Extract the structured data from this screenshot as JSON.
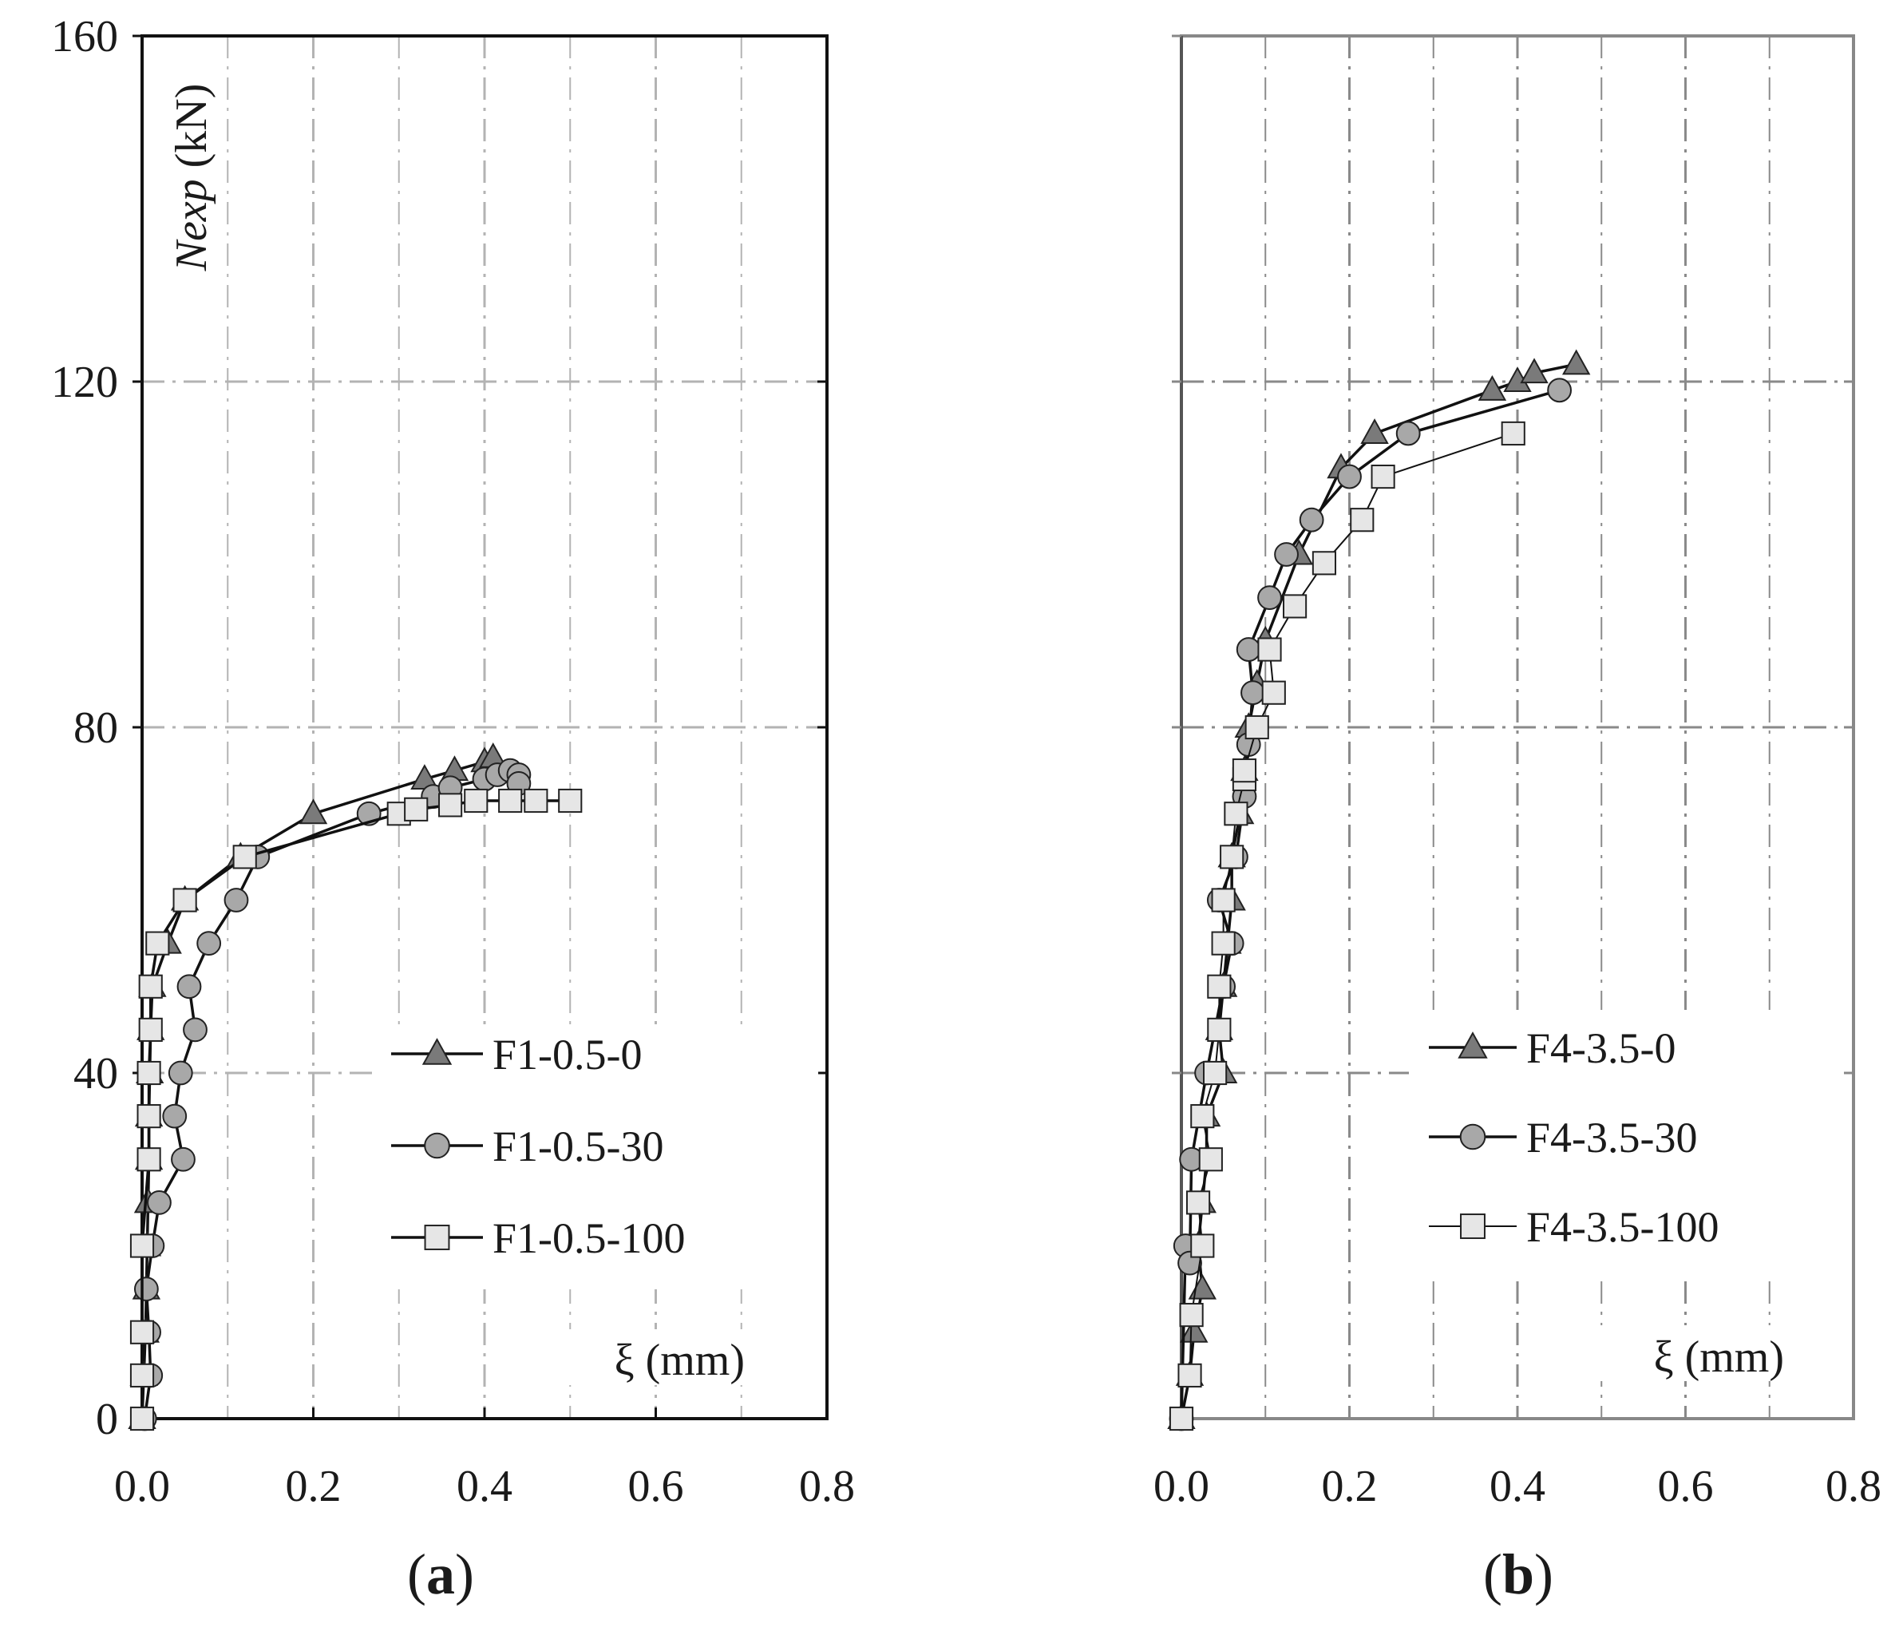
{
  "chart_data": [
    {
      "type": "line",
      "panel_label": "a",
      "title": "",
      "xlabel": "ξ (mm)",
      "ylabel_italic": "Nexp",
      "ylabel_unit": " (kN)",
      "xlim": [
        0,
        0.8
      ],
      "ylim": [
        0,
        160
      ],
      "x_ticks": [
        "0.0",
        "0.2",
        "0.4",
        "0.6",
        "0.8"
      ],
      "y_ticks": [
        "0",
        "40",
        "80",
        "120",
        "160"
      ],
      "grid": true,
      "legend_position": "bottom-right",
      "series": [
        {
          "name": "F1-0.5-0",
          "marker": "triangle",
          "color": "#7a7a7a",
          "points": [
            [
              0.0,
              0
            ],
            [
              0.002,
              5
            ],
            [
              0.004,
              10
            ],
            [
              0.005,
              15
            ],
            [
              0.006,
              20
            ],
            [
              0.007,
              25
            ],
            [
              0.008,
              30
            ],
            [
              0.008,
              35
            ],
            [
              0.009,
              40
            ],
            [
              0.01,
              45
            ],
            [
              0.012,
              50
            ],
            [
              0.03,
              55
            ],
            [
              0.05,
              60
            ],
            [
              0.115,
              65
            ],
            [
              0.2,
              70
            ],
            [
              0.33,
              74
            ],
            [
              0.365,
              75
            ],
            [
              0.4,
              76
            ],
            [
              0.41,
              76.5
            ]
          ]
        },
        {
          "name": "F1-0.5-30",
          "marker": "circle",
          "color": "#a8a8a8",
          "points": [
            [
              0.003,
              0
            ],
            [
              0.01,
              5
            ],
            [
              0.008,
              10
            ],
            [
              0.005,
              15
            ],
            [
              0.012,
              20
            ],
            [
              0.02,
              25
            ],
            [
              0.048,
              30
            ],
            [
              0.038,
              35
            ],
            [
              0.045,
              40
            ],
            [
              0.062,
              45
            ],
            [
              0.055,
              50
            ],
            [
              0.078,
              55
            ],
            [
              0.11,
              60
            ],
            [
              0.135,
              65
            ],
            [
              0.265,
              70
            ],
            [
              0.34,
              72
            ],
            [
              0.36,
              73
            ],
            [
              0.4,
              74
            ],
            [
              0.415,
              74.5
            ],
            [
              0.43,
              75
            ],
            [
              0.44,
              74.5
            ],
            [
              0.44,
              73.5
            ]
          ]
        },
        {
          "name": "F1-0.5-100",
          "marker": "square",
          "color": "#e6e6e6",
          "points": [
            [
              0.0,
              0
            ],
            [
              0.0,
              5
            ],
            [
              0.0,
              10
            ],
            [
              0.0,
              20
            ],
            [
              0.008,
              30
            ],
            [
              0.008,
              35
            ],
            [
              0.008,
              40
            ],
            [
              0.01,
              45
            ],
            [
              0.01,
              50
            ],
            [
              0.018,
              55
            ],
            [
              0.05,
              60
            ],
            [
              0.12,
              65
            ],
            [
              0.3,
              70
            ],
            [
              0.32,
              70.5
            ],
            [
              0.36,
              71
            ],
            [
              0.39,
              71.5
            ],
            [
              0.43,
              71.5
            ],
            [
              0.46,
              71.5
            ],
            [
              0.5,
              71.5
            ]
          ]
        }
      ]
    },
    {
      "type": "line",
      "panel_label": "b",
      "title": "",
      "xlabel": "ξ (mm)",
      "xlim": [
        0,
        0.8
      ],
      "ylim": [
        0,
        160
      ],
      "x_ticks": [
        "0.0",
        "0.2",
        "0.4",
        "0.6",
        "0.8"
      ],
      "grid": true,
      "legend_position": "bottom-right",
      "series": [
        {
          "name": "F4-3.5-0",
          "marker": "triangle",
          "color": "#7a7a7a",
          "points": [
            [
              0.0,
              0
            ],
            [
              0.01,
              5
            ],
            [
              0.015,
              10
            ],
            [
              0.025,
              15
            ],
            [
              0.02,
              20
            ],
            [
              0.025,
              25
            ],
            [
              0.03,
              30
            ],
            [
              0.03,
              35
            ],
            [
              0.05,
              40
            ],
            [
              0.045,
              45
            ],
            [
              0.05,
              50
            ],
            [
              0.055,
              55
            ],
            [
              0.06,
              60
            ],
            [
              0.06,
              65
            ],
            [
              0.07,
              70
            ],
            [
              0.075,
              75
            ],
            [
              0.08,
              80
            ],
            [
              0.09,
              85
            ],
            [
              0.1,
              90
            ],
            [
              0.14,
              100
            ],
            [
              0.19,
              110
            ],
            [
              0.23,
              114
            ],
            [
              0.37,
              119
            ],
            [
              0.4,
              120
            ],
            [
              0.42,
              121
            ],
            [
              0.47,
              122
            ]
          ]
        },
        {
          "name": "F4-3.5-30",
          "marker": "circle",
          "color": "#a8a8a8",
          "points": [
            [
              0.0,
              0
            ],
            [
              0.005,
              20
            ],
            [
              0.01,
              18
            ],
            [
              0.012,
              30
            ],
            [
              0.03,
              40
            ],
            [
              0.05,
              50
            ],
            [
              0.06,
              55
            ],
            [
              0.045,
              60
            ],
            [
              0.065,
              65
            ],
            [
              0.075,
              72
            ],
            [
              0.08,
              78
            ],
            [
              0.085,
              84
            ],
            [
              0.08,
              89
            ],
            [
              0.105,
              95
            ],
            [
              0.125,
              100
            ],
            [
              0.155,
              104
            ],
            [
              0.2,
              109
            ],
            [
              0.27,
              114
            ],
            [
              0.45,
              119
            ]
          ]
        },
        {
          "name": "F4-3.5-100",
          "marker": "square",
          "color": "#e6e6e6",
          "points": [
            [
              0.0,
              0
            ],
            [
              0.01,
              5
            ],
            [
              0.012,
              12
            ],
            [
              0.025,
              20
            ],
            [
              0.02,
              25
            ],
            [
              0.035,
              30
            ],
            [
              0.025,
              35
            ],
            [
              0.04,
              40
            ],
            [
              0.045,
              45
            ],
            [
              0.045,
              50
            ],
            [
              0.05,
              55
            ],
            [
              0.05,
              60
            ],
            [
              0.06,
              65
            ],
            [
              0.065,
              70
            ],
            [
              0.075,
              74
            ],
            [
              0.075,
              75
            ],
            [
              0.09,
              80
            ],
            [
              0.11,
              84
            ],
            [
              0.105,
              89
            ],
            [
              0.135,
              94
            ],
            [
              0.17,
              99
            ],
            [
              0.215,
              104
            ],
            [
              0.24,
              109
            ],
            [
              0.395,
              114
            ]
          ]
        }
      ]
    }
  ]
}
